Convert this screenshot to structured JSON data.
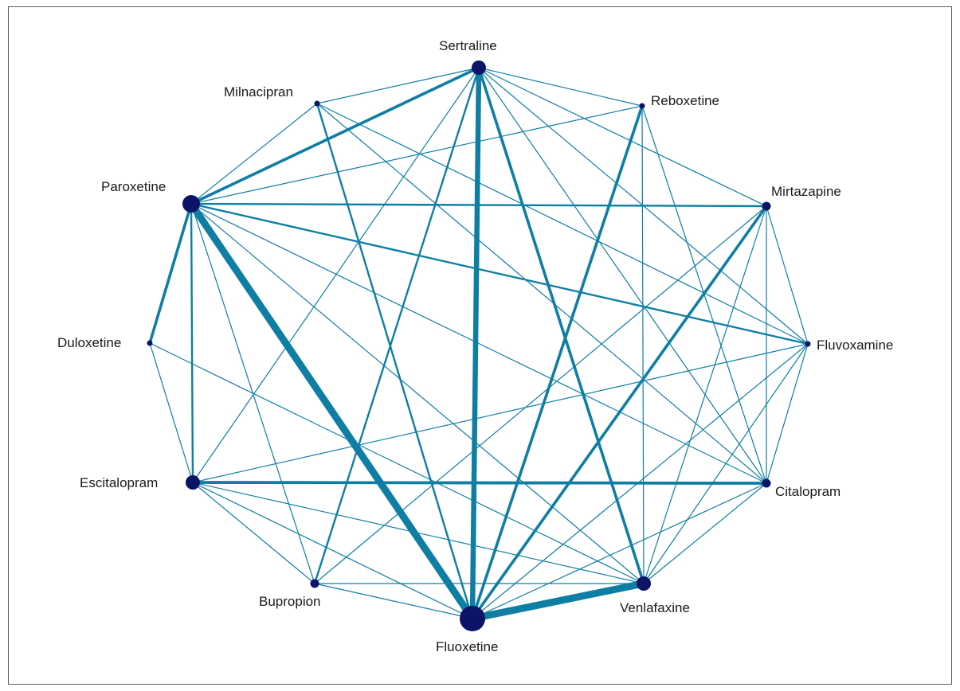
{
  "colors": {
    "edge": "#0e7ea4",
    "node": "#0b1466",
    "text": "#1a1a1a"
  },
  "nodes": [
    {
      "id": "sertraline",
      "label": "Sertraline",
      "size": "medium"
    },
    {
      "id": "reboxetine",
      "label": "Reboxetine",
      "size": "tiny"
    },
    {
      "id": "mirtazapine",
      "label": "Mirtazapine",
      "size": "small"
    },
    {
      "id": "fluvoxamine",
      "label": "Fluvoxamine",
      "size": "tiny"
    },
    {
      "id": "citalopram",
      "label": "Citalopram",
      "size": "small"
    },
    {
      "id": "venlafaxine",
      "label": "Venlafaxine",
      "size": "medium"
    },
    {
      "id": "fluoxetine",
      "label": "Fluoxetine",
      "size": "large"
    },
    {
      "id": "bupropion",
      "label": "Bupropion",
      "size": "small"
    },
    {
      "id": "escitalopram",
      "label": "Escitalopram",
      "size": "medium"
    },
    {
      "id": "duloxetine",
      "label": "Duloxetine",
      "size": "tiny"
    },
    {
      "id": "paroxetine",
      "label": "Paroxetine",
      "size": "large-medium"
    },
    {
      "id": "milnacipran",
      "label": "Milnacipran",
      "size": "tiny"
    }
  ],
  "edges": [
    [
      "sertraline",
      "paroxetine",
      "medium"
    ],
    [
      "sertraline",
      "milnacipran",
      "thin"
    ],
    [
      "sertraline",
      "reboxetine",
      "thin"
    ],
    [
      "sertraline",
      "mirtazapine",
      "thin"
    ],
    [
      "sertraline",
      "fluvoxamine",
      "thin"
    ],
    [
      "sertraline",
      "citalopram",
      "thin"
    ],
    [
      "sertraline",
      "venlafaxine",
      "medium"
    ],
    [
      "sertraline",
      "fluoxetine",
      "thick"
    ],
    [
      "sertraline",
      "bupropion",
      "medium-thin"
    ],
    [
      "sertraline",
      "escitalopram",
      "thin"
    ],
    [
      "milnacipran",
      "paroxetine",
      "thin"
    ],
    [
      "milnacipran",
      "fluoxetine",
      "medium-thin"
    ],
    [
      "milnacipran",
      "fluvoxamine",
      "thin"
    ],
    [
      "milnacipran",
      "citalopram",
      "thin"
    ],
    [
      "reboxetine",
      "fluoxetine",
      "medium"
    ],
    [
      "reboxetine",
      "citalopram",
      "thin"
    ],
    [
      "reboxetine",
      "venlafaxine",
      "thin"
    ],
    [
      "reboxetine",
      "paroxetine",
      "thin"
    ],
    [
      "paroxetine",
      "mirtazapine",
      "medium-thin"
    ],
    [
      "paroxetine",
      "fluvoxamine",
      "medium-thin"
    ],
    [
      "paroxetine",
      "duloxetine",
      "medium"
    ],
    [
      "paroxetine",
      "escitalopram",
      "medium-thin"
    ],
    [
      "paroxetine",
      "fluoxetine",
      "very-thick"
    ],
    [
      "paroxetine",
      "venlafaxine",
      "thin"
    ],
    [
      "paroxetine",
      "bupropion",
      "thin"
    ],
    [
      "paroxetine",
      "citalopram",
      "thin"
    ],
    [
      "mirtazapine",
      "fluoxetine",
      "medium"
    ],
    [
      "mirtazapine",
      "venlafaxine",
      "thin"
    ],
    [
      "mirtazapine",
      "citalopram",
      "thin"
    ],
    [
      "mirtazapine",
      "fluvoxamine",
      "thin"
    ],
    [
      "mirtazapine",
      "bupropion",
      "thin"
    ],
    [
      "fluvoxamine",
      "fluoxetine",
      "thin"
    ],
    [
      "fluvoxamine",
      "venlafaxine",
      "thin"
    ],
    [
      "fluvoxamine",
      "citalopram",
      "thin"
    ],
    [
      "fluvoxamine",
      "escitalopram",
      "thin"
    ],
    [
      "citalopram",
      "escitalopram",
      "medium"
    ],
    [
      "citalopram",
      "fluoxetine",
      "thin"
    ],
    [
      "citalopram",
      "venlafaxine",
      "thin"
    ],
    [
      "duloxetine",
      "escitalopram",
      "thin"
    ],
    [
      "duloxetine",
      "venlafaxine",
      "thin"
    ],
    [
      "escitalopram",
      "fluoxetine",
      "thin"
    ],
    [
      "escitalopram",
      "venlafaxine",
      "thin"
    ],
    [
      "escitalopram",
      "bupropion",
      "thin"
    ],
    [
      "escitalopram",
      "citalopram",
      "medium"
    ],
    [
      "bupropion",
      "fluoxetine",
      "thin"
    ],
    [
      "bupropion",
      "venlafaxine",
      "thin"
    ],
    [
      "fluoxetine",
      "venlafaxine",
      "very-thick"
    ]
  ]
}
